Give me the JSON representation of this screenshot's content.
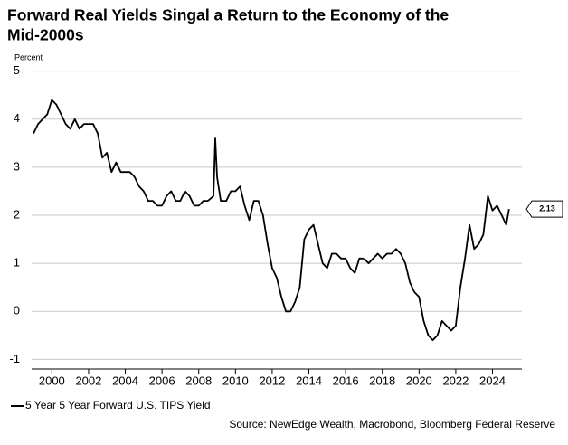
{
  "chart_data": {
    "type": "line",
    "title": [
      "Forward Real Yields Singal a Return to the Economy of the",
      "Mid-2000s"
    ],
    "y_axis_label": "Percent",
    "source": "Source: NewEdge Wealth, Macrobond, Bloomberg Federal Reserve",
    "x": [
      1999.0,
      1999.25,
      1999.5,
      1999.75,
      2000.0,
      2000.25,
      2000.5,
      2000.75,
      2001.0,
      2001.25,
      2001.5,
      2001.75,
      2002.0,
      2002.25,
      2002.5,
      2002.75,
      2003.0,
      2003.25,
      2003.5,
      2003.75,
      2004.0,
      2004.25,
      2004.5,
      2004.75,
      2005.0,
      2005.25,
      2005.5,
      2005.75,
      2006.0,
      2006.25,
      2006.5,
      2006.75,
      2007.0,
      2007.25,
      2007.5,
      2007.75,
      2008.0,
      2008.25,
      2008.5,
      2008.8,
      2008.9,
      2009.0,
      2009.2,
      2009.5,
      2009.75,
      2010.0,
      2010.25,
      2010.5,
      2010.75,
      2011.0,
      2011.25,
      2011.5,
      2011.75,
      2012.0,
      2012.25,
      2012.5,
      2012.75,
      2013.0,
      2013.25,
      2013.5,
      2013.75,
      2014.0,
      2014.25,
      2014.5,
      2014.75,
      2015.0,
      2015.25,
      2015.5,
      2015.75,
      2016.0,
      2016.25,
      2016.5,
      2016.75,
      2017.0,
      2017.25,
      2017.5,
      2017.75,
      2018.0,
      2018.25,
      2018.5,
      2018.75,
      2019.0,
      2019.25,
      2019.5,
      2019.75,
      2020.0,
      2020.25,
      2020.5,
      2020.75,
      2021.0,
      2021.25,
      2021.5,
      2021.75,
      2022.0,
      2022.25,
      2022.5,
      2022.75,
      2023.0,
      2023.25,
      2023.5,
      2023.75,
      2024.0,
      2024.25,
      2024.5,
      2024.75,
      2024.9
    ],
    "series": [
      {
        "name": "5 Year 5 Year Forward U.S. TIPS Yield",
        "color": "#000000",
        "values": [
          3.7,
          3.9,
          4.0,
          4.1,
          4.4,
          4.3,
          4.1,
          3.9,
          3.8,
          4.0,
          3.8,
          3.9,
          3.9,
          3.9,
          3.7,
          3.2,
          3.3,
          2.9,
          3.1,
          2.9,
          2.9,
          2.9,
          2.8,
          2.6,
          2.5,
          2.3,
          2.3,
          2.2,
          2.2,
          2.4,
          2.5,
          2.3,
          2.3,
          2.5,
          2.4,
          2.2,
          2.2,
          2.3,
          2.3,
          2.4,
          3.6,
          2.8,
          2.3,
          2.3,
          2.5,
          2.5,
          2.6,
          2.2,
          1.9,
          2.3,
          2.3,
          2.0,
          1.4,
          0.9,
          0.7,
          0.3,
          0.0,
          0.0,
          0.2,
          0.5,
          1.5,
          1.7,
          1.8,
          1.4,
          1.0,
          0.9,
          1.2,
          1.2,
          1.1,
          1.1,
          0.9,
          0.8,
          1.1,
          1.1,
          1.0,
          1.1,
          1.2,
          1.1,
          1.2,
          1.2,
          1.3,
          1.2,
          1.0,
          0.6,
          0.4,
          0.3,
          -0.2,
          -0.5,
          -0.6,
          -0.5,
          -0.2,
          -0.3,
          -0.4,
          -0.3,
          0.5,
          1.1,
          1.8,
          1.3,
          1.4,
          1.6,
          2.4,
          2.1,
          2.2,
          2.0,
          1.8,
          2.13
        ]
      }
    ],
    "end_value": 2.13,
    "xlim": [
      1998.9,
      2025.6
    ],
    "ylim": [
      -1.2,
      5.2
    ],
    "xticks": [
      2000,
      2002,
      2004,
      2006,
      2008,
      2010,
      2012,
      2014,
      2016,
      2018,
      2020,
      2022,
      2024
    ],
    "yticks": [
      -1,
      0,
      1,
      2,
      3,
      4,
      5
    ],
    "grid": true,
    "legend": "bottom-left"
  }
}
